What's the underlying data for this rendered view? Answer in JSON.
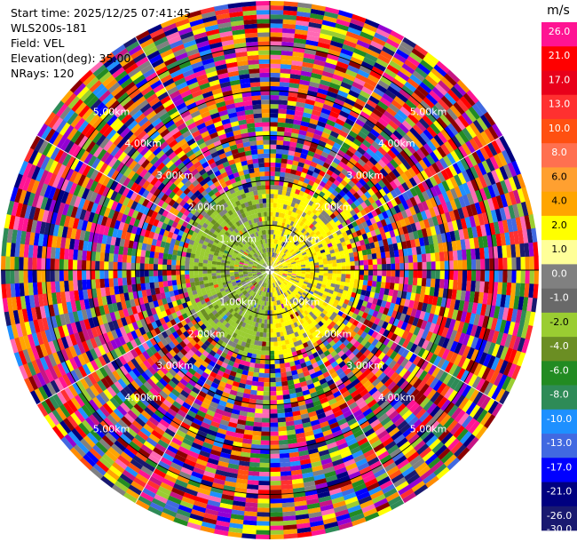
{
  "header": {
    "start_time": "Start time: 2025/12/25 07:41:45",
    "instrument": "WLS200s-181",
    "field": "Field: VEL",
    "elevation": "Elevation(deg): 35.00",
    "nrays": "NRays: 120"
  },
  "chart_data": {
    "type": "heatmap",
    "projection": "ppi",
    "field": "VEL",
    "units": "m/s",
    "elevation_deg": 35.0,
    "n_rays": 120,
    "range_km": [
      0,
      6.0
    ],
    "range_rings_km": [
      1,
      2,
      3,
      4,
      5
    ],
    "range_ring_labels": [
      "1.00km",
      "2.00km",
      "3.00km",
      "4.00km",
      "5.00km"
    ],
    "colorbar": {
      "unit_label": "m/s",
      "tick_labels": [
        "26.0",
        "21.0",
        "17.0",
        "13.0",
        "10.0",
        "8.0",
        "6.0",
        "4.0",
        "2.0",
        "1.0",
        "0.0",
        "-1.0",
        "-2.0",
        "-4.0",
        "-6.0",
        "-8.0",
        "-10.0",
        "-13.0",
        "-17.0",
        "-21.0",
        "-26.0",
        "-30.0"
      ],
      "colors": [
        "#ff1493",
        "#ff0000",
        "#e8001a",
        "#ff3030",
        "#ff5010",
        "#ff7050",
        "#ffa030",
        "#ffa500",
        "#ffff00",
        "#ffff99",
        "#808080",
        "#696969",
        "#9acd32",
        "#6b8e23",
        "#228b22",
        "#2e8b57",
        "#1e90ff",
        "#4169e1",
        "#0000ff",
        "#000080",
        "#191970"
      ]
    },
    "inner_region": {
      "radius_km": 2.0,
      "west_colors": [
        "#9acd32",
        "#6b8e23",
        "#808080",
        "#9acd32",
        "#9acd32"
      ],
      "east_colors": [
        "#ffff00",
        "#ffd700",
        "#ffff00",
        "#808080",
        "#ffff00"
      ]
    },
    "noise_palette": [
      "#ff1493",
      "#ff0000",
      "#ff3030",
      "#ff5010",
      "#ffa500",
      "#ffff00",
      "#808080",
      "#9acd32",
      "#228b22",
      "#2e8b57",
      "#1e90ff",
      "#0000ff",
      "#000080",
      "#191970",
      "#c71585",
      "#9400d3",
      "#ff69b4",
      "#ff8c00",
      "#4169e1",
      "#8b0000"
    ]
  }
}
